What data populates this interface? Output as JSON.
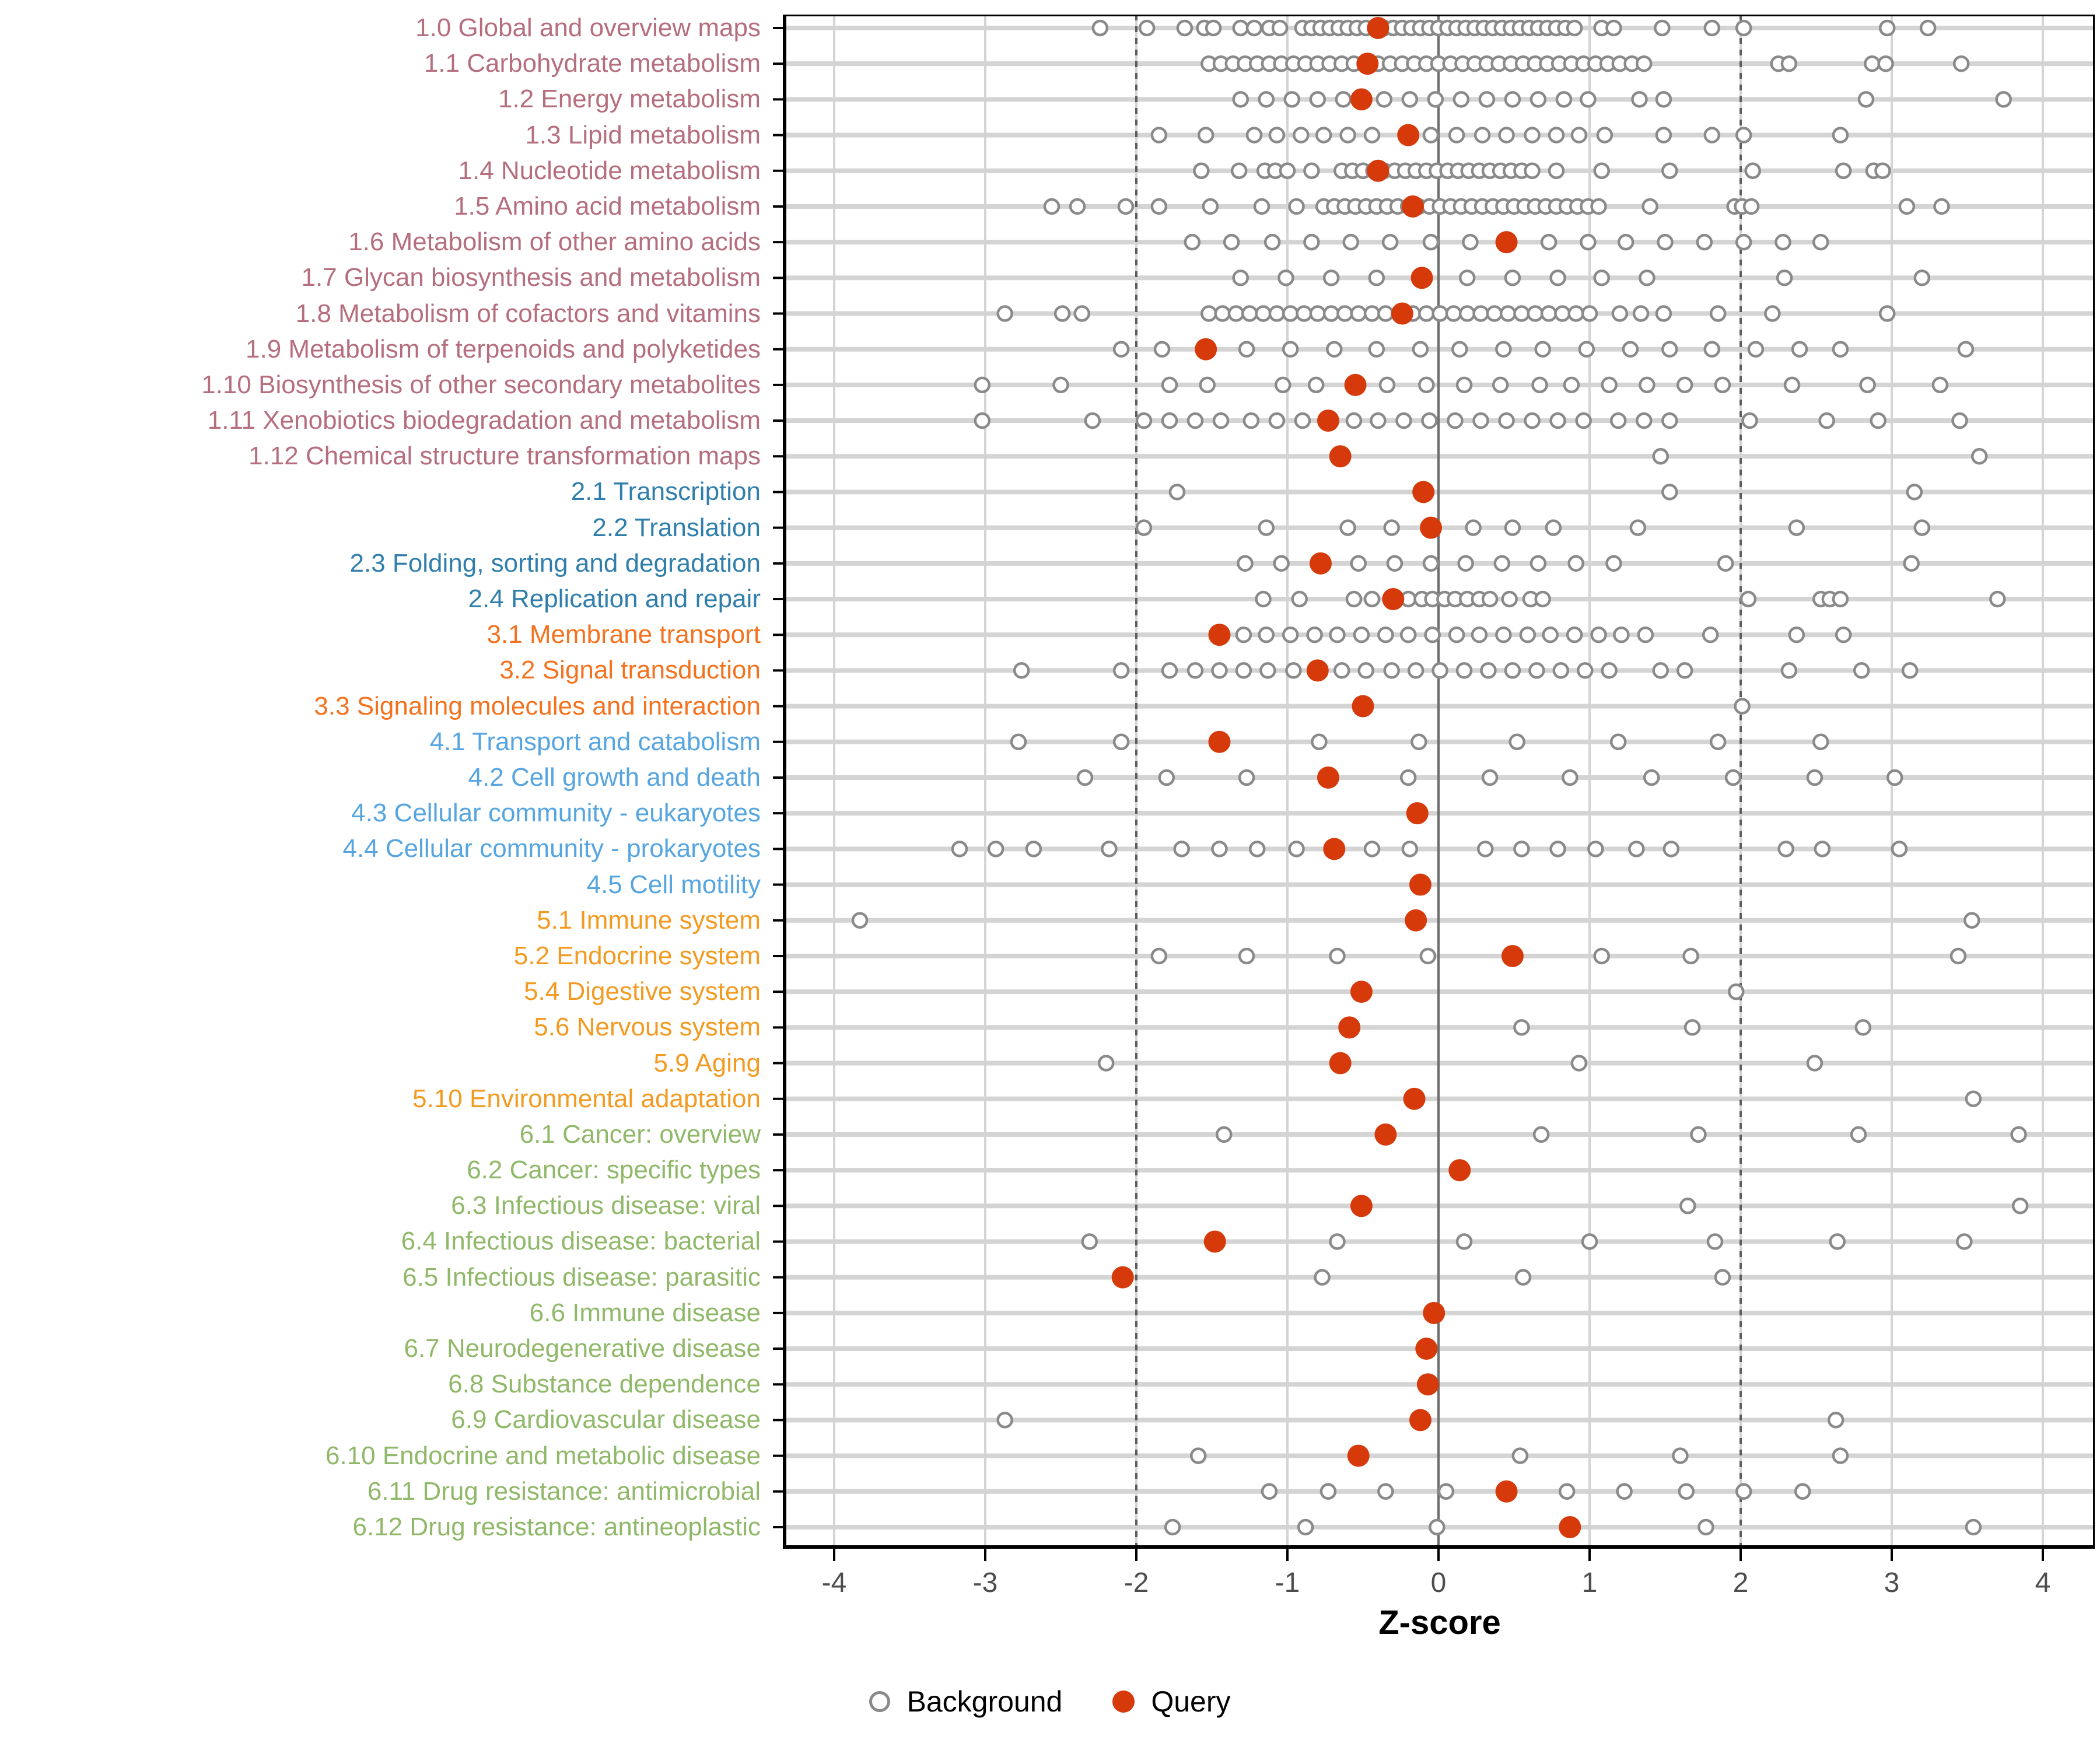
{
  "chart_data": {
    "type": "scatter",
    "title": "",
    "xlabel": "Z-score",
    "ylabel": "",
    "xlim": [
      -4.35,
      4.35
    ],
    "x_ticks": [
      -4,
      -3,
      -2,
      -1,
      0,
      1,
      2,
      3,
      4
    ],
    "reference_lines": {
      "solid_at": 0,
      "dashed_at": [
        -2,
        2
      ]
    },
    "grid": "on",
    "legend_position": "bottom",
    "legend": {
      "background_label": "Background",
      "query_label": "Query"
    },
    "colors": {
      "query": "#d63a0a",
      "background_stroke": "#8a8a8a",
      "band_grid": "#d4d4d4",
      "vgrid": "#d4d4d4",
      "ref_dashed": "#5c5c5c",
      "ref_solid": "#6e6e6e",
      "axis_text": "#4d4d4d",
      "groups": {
        "metabolism": "#b56e7d",
        "genetic_information_processing": "#2f7eab",
        "environmental_information_processing": "#f4721e",
        "cellular_processes": "#56a5e0",
        "organismal_systems": "#f39a21",
        "human_diseases": "#90b869"
      }
    },
    "rows": [
      {
        "label": "1.0 Global and overview maps",
        "group": "metabolism",
        "query": -0.4,
        "background": [
          -2.24,
          -1.93,
          -1.68,
          -1.55,
          -1.49,
          -1.31,
          -1.22,
          -1.12,
          -1.05,
          -0.9,
          -0.84,
          -0.78,
          -0.72,
          -0.66,
          -0.6,
          -0.54,
          -0.48,
          -0.42,
          -0.36,
          -0.3,
          -0.24,
          -0.18,
          -0.12,
          -0.06,
          0.0,
          0.06,
          0.12,
          0.18,
          0.24,
          0.3,
          0.36,
          0.42,
          0.48,
          0.54,
          0.6,
          0.66,
          0.72,
          0.78,
          0.84,
          0.9,
          1.08,
          1.16,
          1.48,
          1.81,
          2.02,
          2.97,
          3.24
        ]
      },
      {
        "label": "1.1 Carbohydrate metabolism",
        "group": "metabolism",
        "query": -0.47,
        "background": [
          -1.52,
          -1.44,
          -1.36,
          -1.28,
          -1.2,
          -1.12,
          -1.04,
          -0.96,
          -0.88,
          -0.8,
          -0.72,
          -0.64,
          -0.56,
          -0.48,
          -0.4,
          -0.32,
          -0.24,
          -0.16,
          -0.08,
          0.0,
          0.08,
          0.16,
          0.24,
          0.32,
          0.4,
          0.48,
          0.56,
          0.64,
          0.72,
          0.8,
          0.88,
          0.96,
          1.04,
          1.12,
          1.2,
          1.28,
          1.36,
          2.25,
          2.32,
          2.87,
          2.96,
          3.46
        ]
      },
      {
        "label": "1.2 Energy metabolism",
        "group": "metabolism",
        "query": -0.51,
        "background": [
          -1.31,
          -1.14,
          -0.97,
          -0.8,
          -0.63,
          -0.36,
          -0.19,
          -0.02,
          0.15,
          0.32,
          0.49,
          0.66,
          0.83,
          0.99,
          1.33,
          1.49,
          2.83,
          3.74
        ]
      },
      {
        "label": "1.3 Lipid metabolism",
        "group": "metabolism",
        "query": -0.2,
        "background": [
          -1.85,
          -1.54,
          -1.22,
          -1.07,
          -0.91,
          -0.76,
          -0.6,
          -0.44,
          -0.05,
          0.12,
          0.29,
          0.45,
          0.62,
          0.78,
          0.93,
          1.1,
          1.49,
          1.81,
          2.02,
          2.66
        ]
      },
      {
        "label": "1.4 Nucleotide metabolism",
        "group": "metabolism",
        "query": -0.4,
        "background": [
          -1.57,
          -1.32,
          -1.15,
          -1.08,
          -1.0,
          -0.84,
          -0.64,
          -0.57,
          -0.5,
          -0.43,
          -0.36,
          -0.29,
          -0.22,
          -0.15,
          -0.08,
          -0.01,
          0.06,
          0.13,
          0.2,
          0.27,
          0.34,
          0.41,
          0.48,
          0.55,
          0.62,
          0.78,
          1.08,
          1.53,
          2.08,
          2.68,
          2.88,
          2.94
        ]
      },
      {
        "label": "1.5 Amino acid metabolism",
        "group": "metabolism",
        "query": -0.17,
        "background": [
          -2.56,
          -2.39,
          -2.07,
          -1.85,
          -1.51,
          -1.17,
          -0.94,
          -0.76,
          -0.69,
          -0.62,
          -0.55,
          -0.48,
          -0.41,
          -0.34,
          -0.27,
          -0.2,
          -0.13,
          -0.06,
          0.01,
          0.08,
          0.15,
          0.22,
          0.29,
          0.36,
          0.43,
          0.5,
          0.57,
          0.64,
          0.71,
          0.78,
          0.85,
          0.92,
          0.99,
          1.06,
          1.4,
          1.96,
          2.01,
          2.07,
          3.1,
          3.33
        ]
      },
      {
        "label": "1.6 Metabolism of other amino acids",
        "group": "metabolism",
        "query": 0.45,
        "background": [
          -1.63,
          -1.37,
          -1.1,
          -0.84,
          -0.58,
          -0.32,
          -0.05,
          0.21,
          0.73,
          0.99,
          1.24,
          1.5,
          1.76,
          2.02,
          2.28,
          2.53
        ]
      },
      {
        "label": "1.7 Glycan biosynthesis and metabolism",
        "group": "metabolism",
        "query": -0.11,
        "background": [
          -1.31,
          -1.01,
          -0.71,
          -0.41,
          0.19,
          0.49,
          0.79,
          1.08,
          1.38,
          2.29,
          3.2
        ]
      },
      {
        "label": "1.8 Metabolism of cofactors and vitamins",
        "group": "metabolism",
        "query": -0.24,
        "background": [
          -2.87,
          -2.49,
          -2.36,
          -1.52,
          -1.43,
          -1.34,
          -1.25,
          -1.16,
          -1.07,
          -0.98,
          -0.89,
          -0.8,
          -0.71,
          -0.62,
          -0.53,
          -0.44,
          -0.35,
          -0.26,
          -0.17,
          -0.08,
          0.01,
          0.1,
          0.19,
          0.28,
          0.37,
          0.46,
          0.55,
          0.64,
          0.73,
          0.82,
          0.91,
          1.0,
          1.2,
          1.34,
          1.49,
          1.85,
          2.21,
          2.97
        ]
      },
      {
        "label": "1.9 Metabolism of terpenoids and polyketides",
        "group": "metabolism",
        "query": -1.54,
        "background": [
          -2.1,
          -1.83,
          -1.27,
          -0.98,
          -0.69,
          -0.41,
          -0.12,
          0.14,
          0.43,
          0.69,
          0.98,
          1.27,
          1.53,
          1.81,
          2.1,
          2.39,
          2.66,
          3.49
        ]
      },
      {
        "label": "1.10 Biosynthesis of other secondary metabolites",
        "group": "metabolism",
        "query": -0.55,
        "background": [
          -3.02,
          -2.5,
          -1.78,
          -1.53,
          -1.03,
          -0.81,
          -0.34,
          -0.08,
          0.17,
          0.41,
          0.67,
          0.88,
          1.13,
          1.38,
          1.63,
          1.88,
          2.34,
          2.84,
          3.32
        ]
      },
      {
        "label": "1.11 Xenobiotics biodegradation and metabolism",
        "group": "metabolism",
        "query": -0.73,
        "background": [
          -3.02,
          -2.29,
          -1.95,
          -1.78,
          -1.61,
          -1.44,
          -1.24,
          -1.07,
          -0.9,
          -0.56,
          -0.4,
          -0.23,
          -0.06,
          0.11,
          0.28,
          0.45,
          0.62,
          0.79,
          0.96,
          1.19,
          1.36,
          1.53,
          2.06,
          2.57,
          2.91,
          3.45
        ]
      },
      {
        "label": "1.12 Chemical structure transformation maps",
        "group": "metabolism",
        "query": -0.65,
        "background": [
          1.47,
          3.58
        ]
      },
      {
        "label": "2.1 Transcription",
        "group": "genetic_information_processing",
        "query": -0.1,
        "background": [
          -1.73,
          1.53,
          3.15
        ]
      },
      {
        "label": "2.2 Translation",
        "group": "genetic_information_processing",
        "query": -0.05,
        "background": [
          -1.95,
          -1.14,
          -0.6,
          -0.31,
          0.23,
          0.49,
          0.76,
          1.32,
          2.37,
          3.2
        ]
      },
      {
        "label": "2.3 Folding, sorting and degradation",
        "group": "genetic_information_processing",
        "query": -0.78,
        "background": [
          -1.28,
          -1.04,
          -0.53,
          -0.29,
          -0.05,
          0.18,
          0.42,
          0.66,
          0.91,
          1.16,
          1.9,
          3.13
        ]
      },
      {
        "label": "2.4 Replication and repair",
        "group": "genetic_information_processing",
        "query": -0.3,
        "background": [
          -1.16,
          -0.92,
          -0.56,
          -0.44,
          -0.2,
          -0.11,
          -0.04,
          0.04,
          0.11,
          0.19,
          0.27,
          0.34,
          0.47,
          0.61,
          0.69,
          2.05,
          2.53,
          2.59,
          2.66,
          3.7
        ]
      },
      {
        "label": "3.1 Membrane transport",
        "group": "environmental_information_processing",
        "query": -1.45,
        "background": [
          -1.29,
          -1.14,
          -0.98,
          -0.82,
          -0.67,
          -0.51,
          -0.35,
          -0.2,
          -0.04,
          0.12,
          0.27,
          0.43,
          0.59,
          0.74,
          0.9,
          1.06,
          1.21,
          1.37,
          1.8,
          2.37,
          2.68
        ]
      },
      {
        "label": "3.2 Signal transduction",
        "group": "environmental_information_processing",
        "query": -0.8,
        "background": [
          -2.76,
          -2.1,
          -1.78,
          -1.61,
          -1.45,
          -1.29,
          -1.13,
          -0.96,
          -0.64,
          -0.48,
          -0.31,
          -0.15,
          0.01,
          0.17,
          0.33,
          0.49,
          0.65,
          0.81,
          0.97,
          1.13,
          1.47,
          1.63,
          2.32,
          2.8,
          3.12
        ]
      },
      {
        "label": "3.3 Signaling molecules and interaction",
        "group": "environmental_information_processing",
        "query": -0.5,
        "background": [
          2.01
        ]
      },
      {
        "label": "4.1 Transport and catabolism",
        "group": "cellular_processes",
        "query": -1.45,
        "background": [
          -2.78,
          -2.1,
          -0.79,
          -0.13,
          0.52,
          1.19,
          1.85,
          2.53
        ]
      },
      {
        "label": "4.2 Cell growth and death",
        "group": "cellular_processes",
        "query": -0.73,
        "background": [
          -2.34,
          -1.8,
          -1.27,
          -0.2,
          0.34,
          0.87,
          1.41,
          1.95,
          2.49,
          3.02
        ]
      },
      {
        "label": "4.3 Cellular community - eukaryotes",
        "group": "cellular_processes",
        "query": -0.14,
        "background": []
      },
      {
        "label": "4.4 Cellular community - prokaryotes",
        "group": "cellular_processes",
        "query": -0.69,
        "background": [
          -3.17,
          -2.93,
          -2.68,
          -2.18,
          -1.7,
          -1.45,
          -1.2,
          -0.94,
          -0.44,
          -0.19,
          0.31,
          0.55,
          0.79,
          1.04,
          1.31,
          1.54,
          2.3,
          2.54,
          3.05
        ]
      },
      {
        "label": "4.5 Cell motility",
        "group": "cellular_processes",
        "query": -0.12,
        "background": []
      },
      {
        "label": "5.1 Immune system",
        "group": "organismal_systems",
        "query": -0.15,
        "background": [
          -3.83,
          3.53
        ]
      },
      {
        "label": "5.2 Endocrine system",
        "group": "organismal_systems",
        "query": 0.49,
        "background": [
          -1.85,
          -1.27,
          -0.67,
          -0.07,
          1.08,
          1.67,
          3.44
        ]
      },
      {
        "label": "5.4 Digestive system",
        "group": "organismal_systems",
        "query": -0.51,
        "background": [
          1.97
        ]
      },
      {
        "label": "5.6 Nervous system",
        "group": "organismal_systems",
        "query": -0.59,
        "background": [
          0.55,
          1.68,
          2.81
        ]
      },
      {
        "label": "5.9 Aging",
        "group": "organismal_systems",
        "query": -0.65,
        "background": [
          -2.2,
          0.93,
          2.49
        ]
      },
      {
        "label": "5.10 Environmental adaptation",
        "group": "organismal_systems",
        "query": -0.16,
        "background": [
          3.54
        ]
      },
      {
        "label": "6.1 Cancer: overview",
        "group": "human_diseases",
        "query": -0.35,
        "background": [
          -1.42,
          0.68,
          1.72,
          2.78,
          3.84
        ]
      },
      {
        "label": "6.2 Cancer: specific types",
        "group": "human_diseases",
        "query": 0.14,
        "background": []
      },
      {
        "label": "6.3 Infectious disease: viral",
        "group": "human_diseases",
        "query": -0.51,
        "background": [
          1.65,
          3.85
        ]
      },
      {
        "label": "6.4 Infectious disease: bacterial",
        "group": "human_diseases",
        "query": -1.48,
        "background": [
          -2.31,
          -0.67,
          0.17,
          1.0,
          1.83,
          2.64,
          3.48
        ]
      },
      {
        "label": "6.5 Infectious disease: parasitic",
        "group": "human_diseases",
        "query": -2.09,
        "background": [
          -0.77,
          0.56,
          1.88
        ]
      },
      {
        "label": "6.6 Immune disease",
        "group": "human_diseases",
        "query": -0.03,
        "background": []
      },
      {
        "label": "6.7 Neurodegenerative disease",
        "group": "human_diseases",
        "query": -0.08,
        "background": []
      },
      {
        "label": "6.8 Substance dependence",
        "group": "human_diseases",
        "query": -0.07,
        "background": []
      },
      {
        "label": "6.9 Cardiovascular disease",
        "group": "human_diseases",
        "query": -0.12,
        "background": [
          -2.87,
          2.63
        ]
      },
      {
        "label": "6.10 Endocrine and metabolic disease",
        "group": "human_diseases",
        "query": -0.53,
        "background": [
          -1.59,
          0.54,
          1.6,
          2.66
        ]
      },
      {
        "label": "6.11 Drug resistance: antimicrobial",
        "group": "human_diseases",
        "query": 0.45,
        "background": [
          -1.12,
          -0.73,
          -0.35,
          0.05,
          0.85,
          1.23,
          1.64,
          2.02,
          2.41
        ]
      },
      {
        "label": "6.12 Drug resistance: antineoplastic",
        "group": "human_diseases",
        "query": 0.87,
        "background": [
          -1.76,
          -0.88,
          -0.01,
          1.77,
          3.54
        ]
      }
    ]
  }
}
